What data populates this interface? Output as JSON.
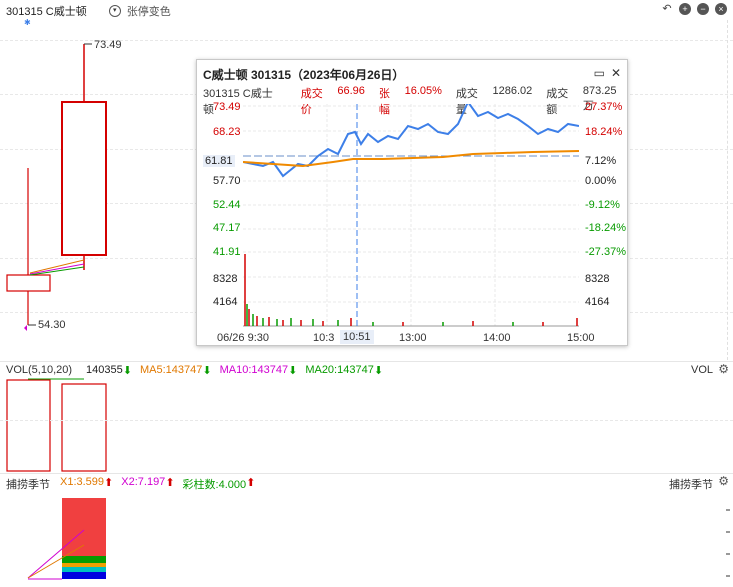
{
  "toolbar": {
    "stock_label": "301315 C威士顿",
    "dropdown_label": "张停变色"
  },
  "main_chart": {
    "high_label": "73.49",
    "low_label": "54.30"
  },
  "popup": {
    "title": "C威士顿 301315（2023年06月26日）",
    "code": "301315 C威士顿",
    "price_label": "成交价",
    "price": "66.96",
    "change_label": "张幅",
    "change": "16.05%",
    "volume_label": "成交量",
    "volume": "1286.02",
    "amount_label": "成交额",
    "amount": "873.25万",
    "left_axis": [
      "73.49",
      "68.23",
      "61.81",
      "57.70",
      "52.44",
      "47.17",
      "41.91",
      "8328",
      "4164"
    ],
    "right_axis": [
      "27.37%",
      "18.24%",
      "7.12%",
      "0.00%",
      "-9.12%",
      "-18.24%",
      "-27.37%",
      "8328",
      "4164"
    ],
    "x_labels": [
      "06/26 9:30",
      "10:3",
      "10:51",
      "13:00",
      "14:00",
      "15:00"
    ]
  },
  "vol_bar": {
    "title": "VOL(5,10,20)",
    "value": "140355",
    "ma5": "MA5:143747",
    "ma10": "MA10:143747",
    "ma20": "MA20:143747",
    "right_label": "VOL"
  },
  "ind_bar": {
    "title": "捕捞季节",
    "x1": "X1:3.599",
    "x2": "X2:7.197",
    "bars": "彩柱数:4.000",
    "right_label": "捕捞季节"
  },
  "colors": {
    "up": "#d40000",
    "down": "#079b00",
    "ma5": "#e07800",
    "ma10": "#d000d0",
    "price_line": "#3d7fe8",
    "avg_line": "#f08a00"
  },
  "chart_data": {
    "type": "line",
    "title": "C威士顿 301315（2023年06月26日）",
    "series": [
      {
        "name": "",
        "x": [
          "9:30",
          "10:00",
          "10:30",
          "11:30",
          "13:00",
          "13:30",
          "14:00",
          "14:30",
          "15:00"
        ],
        "values": [
          61.8,
          60.0,
          64.5,
          64.8,
          66.5,
          67.0,
          70.0,
          66.5,
          66.96
        ]
      }
    ],
    "ylim": [
      41.91,
      73.49
    ]
  }
}
